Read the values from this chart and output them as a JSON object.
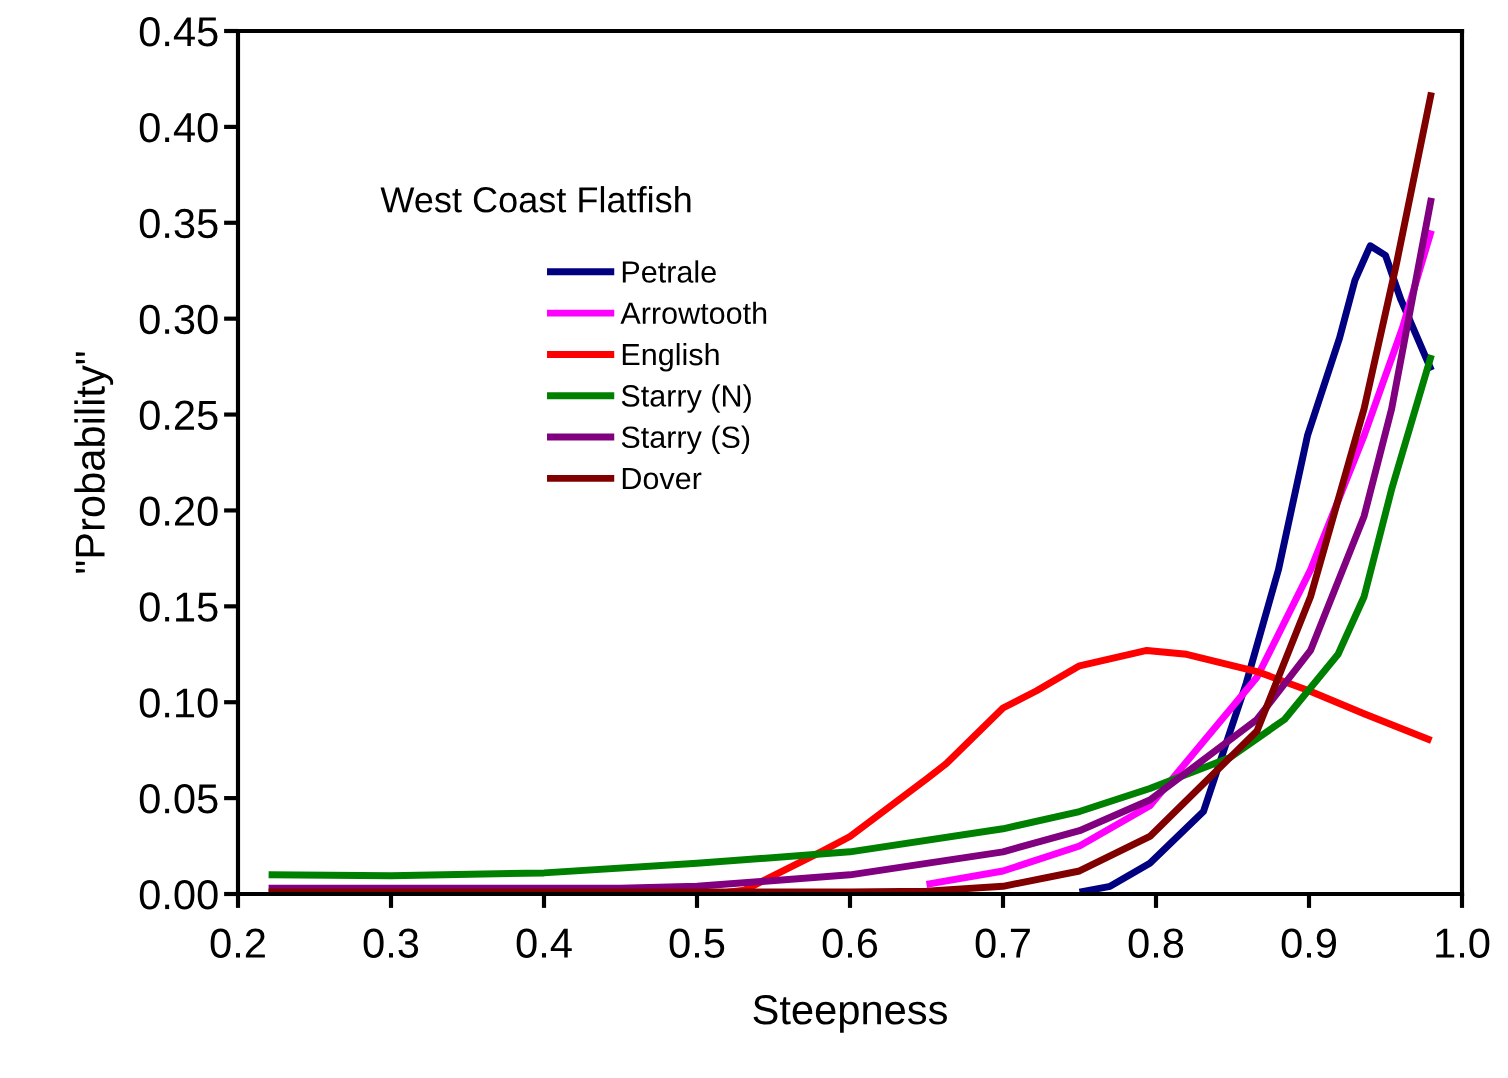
{
  "chart_data": {
    "type": "line",
    "xlabel": "Steepness",
    "ylabel": "\"Probability\"",
    "legend_title": "West Coast Flatfish",
    "legend": "top left",
    "grid": false,
    "marker": "none",
    "line_style": "solid",
    "xlim": [
      0.2,
      1.0
    ],
    "xticks": [
      0.2,
      0.3,
      0.4,
      0.5,
      0.6,
      0.7,
      0.8,
      0.9,
      {
        "value": 1.0,
        "label": "1.0"
      }
    ],
    "ylim": [
      0,
      0.45
    ],
    "yticks": [
      {
        "value": 0,
        "label": "0.00"
      },
      {
        "value": 0.05,
        "label": "0.05"
      },
      {
        "value": 0.1,
        "label": "0.10"
      },
      {
        "value": 0.15,
        "label": "0.15"
      },
      {
        "value": 0.2,
        "label": "0.20"
      },
      {
        "value": 0.25,
        "label": "0.25"
      },
      {
        "value": 0.3,
        "label": "0.30"
      },
      {
        "value": 0.35,
        "label": "0.35"
      },
      {
        "value": 0.4,
        "label": "0.40"
      },
      {
        "value": 0.45,
        "label": "0.45"
      }
    ],
    "series": [
      {
        "name": "Petrale",
        "color": "#000080",
        "x": [
          0.75,
          0.77,
          0.796,
          0.831,
          0.859,
          0.88,
          0.899,
          0.92,
          0.93,
          0.94,
          0.95,
          0.96,
          0.98
        ],
        "values": [
          0.001,
          0.004,
          0.016,
          0.043,
          0.11,
          0.169,
          0.239,
          0.29,
          0.32,
          0.338,
          0.333,
          0.31,
          0.273
        ]
      },
      {
        "name": "Arrowtooth",
        "color": "#ff00ff",
        "x": [
          0.65,
          0.7,
          0.75,
          0.796,
          0.866,
          0.901,
          0.936,
          0.961,
          0.98
        ],
        "values": [
          0.005,
          0.012,
          0.025,
          0.046,
          0.113,
          0.169,
          0.239,
          0.295,
          0.346
        ]
      },
      {
        "name": "English",
        "color": "#ff0000",
        "x": [
          0.52,
          0.531,
          0.581,
          0.6,
          0.65,
          0.663,
          0.7,
          0.722,
          0.75,
          0.794,
          0.82,
          0.866,
          0.9,
          0.936,
          0.98
        ],
        "values": [
          0.001,
          0.002,
          0.022,
          0.03,
          0.06,
          0.068,
          0.097,
          0.106,
          0.119,
          0.127,
          0.125,
          0.116,
          0.106,
          0.094,
          0.08
        ]
      },
      {
        "name": "Starry (N)",
        "color": "#008000",
        "x": [
          0.22,
          0.3,
          0.4,
          0.5,
          0.6,
          0.7,
          0.75,
          0.796,
          0.848,
          0.884,
          0.919,
          0.936,
          0.954,
          0.98
        ],
        "values": [
          0.01,
          0.0095,
          0.011,
          0.016,
          0.022,
          0.034,
          0.043,
          0.055,
          0.071,
          0.091,
          0.125,
          0.155,
          0.211,
          0.281
        ]
      },
      {
        "name": "Starry (S)",
        "color": "#800080",
        "x": [
          0.22,
          0.45,
          0.5,
          0.6,
          0.7,
          0.75,
          0.796,
          0.866,
          0.901,
          0.936,
          0.954,
          0.98
        ],
        "values": [
          0.003,
          0.003,
          0.004,
          0.01,
          0.022,
          0.033,
          0.049,
          0.091,
          0.127,
          0.197,
          0.253,
          0.363
        ]
      },
      {
        "name": "Dover",
        "color": "#800000",
        "x": [
          0.22,
          0.6,
          0.65,
          0.7,
          0.75,
          0.796,
          0.866,
          0.901,
          0.936,
          0.957,
          0.98
        ],
        "values": [
          0.001,
          0.001,
          0.0015,
          0.004,
          0.012,
          0.03,
          0.085,
          0.155,
          0.253,
          0.328,
          0.418
        ]
      }
    ]
  }
}
